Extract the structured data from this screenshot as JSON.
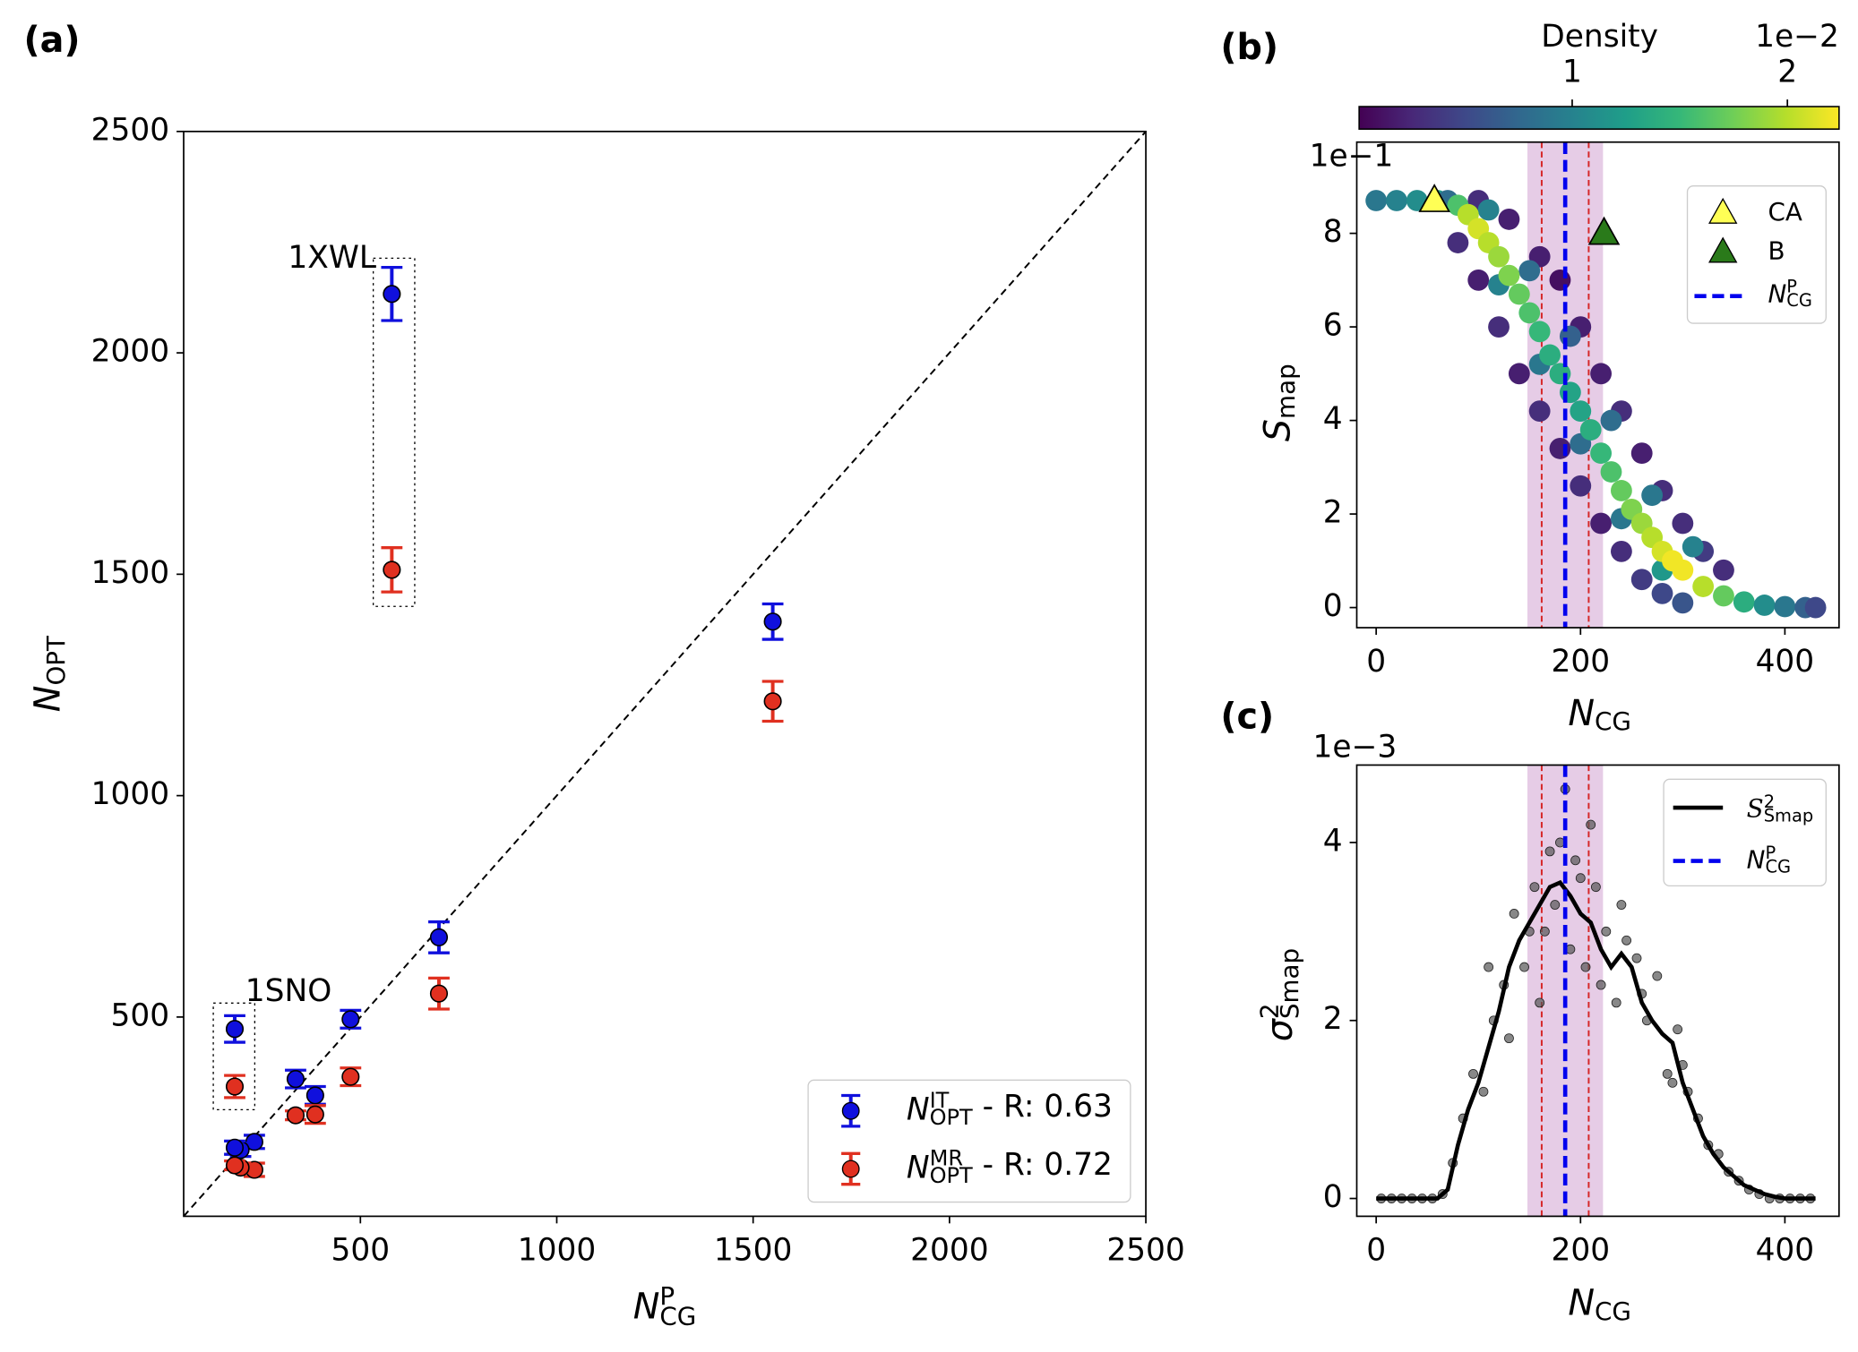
{
  "chart_data": [
    {
      "type": "scatter",
      "panel_label": "(a)",
      "x_label": {
        "base": "N",
        "sup": "P",
        "sub": "CG"
      },
      "y_label": {
        "base": "N",
        "sub": "OPT"
      },
      "xlim": [
        50,
        2500
      ],
      "ylim": [
        50,
        2500
      ],
      "xticks": [
        500,
        1000,
        1500,
        2000,
        2500
      ],
      "yticks": [
        500,
        1000,
        1500,
        2000,
        2500
      ],
      "diagonal": true,
      "legend": "lower right",
      "annotations": [
        "1XWL",
        "1SNO"
      ],
      "x": [
        580,
        1550,
        700,
        475,
        180,
        385,
        335,
        230,
        195,
        180
      ],
      "series": [
        {
          "name": {
            "base": "N",
            "sup": "IT",
            "sub": "OPT",
            "rest": " - R: 0.63"
          },
          "color": "#1010dd",
          "values": [
            2133,
            1393,
            680,
            495,
            473,
            323,
            360,
            218,
            200,
            205
          ],
          "errors": [
            60,
            40,
            35,
            20,
            30,
            20,
            20,
            15,
            15,
            15
          ]
        },
        {
          "name": {
            "base": "N",
            "sup": "MR",
            "sub": "OPT",
            "rest": " - R: 0.72"
          },
          "color": "#e03020",
          "values": [
            1510,
            1213,
            553,
            365,
            343,
            280,
            278,
            155,
            160,
            165
          ],
          "errors": [
            50,
            45,
            35,
            20,
            25,
            20,
            10,
            15,
            10,
            10
          ]
        }
      ]
    },
    {
      "type": "density_scatter",
      "panel_label": "(b)",
      "x_label": {
        "base": "N",
        "sub": "CG"
      },
      "y_label": {
        "base": "S",
        "sub": "map"
      },
      "y_offset": "1e−1",
      "xlim": [
        -19,
        453
      ],
      "ylim": [
        -0.43,
        9.95
      ],
      "xticks": [
        0,
        200,
        400
      ],
      "yticks": [
        0,
        2,
        4,
        6,
        8
      ],
      "colorbar": {
        "label": "Density",
        "ticks": [
          1,
          2
        ],
        "offset": "1e−2",
        "lim": [
          0.01,
          2.24
        ],
        "colormap": "viridis"
      },
      "x": [
        100,
        130,
        160,
        180,
        200,
        220,
        240,
        260,
        280,
        300,
        320,
        340,
        80,
        100,
        120,
        140,
        160,
        180,
        200,
        220,
        240,
        260,
        280,
        300,
        110,
        150,
        190,
        230,
        270,
        310,
        120,
        160,
        200,
        240,
        280,
        0,
        20,
        40,
        60,
        70,
        80,
        90,
        100,
        110,
        120,
        130,
        140,
        150,
        160,
        170,
        180,
        190,
        200,
        210,
        220,
        230,
        240,
        250,
        260,
        270,
        280,
        290,
        300,
        320,
        340,
        360,
        380,
        400,
        420,
        430
      ],
      "y": [
        8.7,
        8.3,
        7.5,
        7.0,
        6.0,
        5.0,
        4.2,
        3.3,
        2.5,
        1.8,
        1.2,
        0.8,
        7.8,
        7.0,
        6.0,
        5.0,
        4.2,
        3.4,
        2.6,
        1.8,
        1.2,
        0.6,
        0.3,
        0.1,
        8.5,
        7.2,
        5.8,
        4.0,
        2.4,
        1.3,
        6.9,
        5.2,
        3.5,
        1.9,
        0.8,
        8.7,
        8.7,
        8.7,
        8.7,
        8.7,
        8.6,
        8.4,
        8.1,
        7.8,
        7.5,
        7.1,
        6.7,
        6.3,
        5.9,
        5.4,
        5.0,
        4.6,
        4.2,
        3.8,
        3.3,
        2.9,
        2.5,
        2.1,
        1.8,
        1.5,
        1.2,
        1.0,
        0.8,
        0.45,
        0.25,
        0.12,
        0.05,
        0.02,
        0.0,
        0.0
      ],
      "density": [
        0.3,
        0.2,
        0.2,
        0.1,
        0.2,
        0.2,
        0.3,
        0.2,
        0.3,
        0.3,
        0.4,
        0.3,
        0.3,
        0.2,
        0.3,
        0.2,
        0.3,
        0.2,
        0.3,
        0.2,
        0.3,
        0.4,
        0.5,
        0.6,
        1.0,
        0.8,
        0.7,
        0.8,
        0.9,
        1.0,
        1.0,
        0.9,
        0.8,
        0.9,
        1.2,
        0.9,
        1.0,
        1.1,
        1.2,
        0.8,
        1.6,
        2.0,
        2.1,
        2.0,
        1.9,
        1.8,
        1.7,
        1.6,
        1.5,
        1.4,
        1.4,
        1.3,
        1.3,
        1.4,
        1.5,
        1.6,
        1.7,
        1.8,
        1.9,
        2.0,
        2.1,
        2.2,
        2.2,
        2.0,
        1.7,
        1.4,
        1.1,
        0.9,
        0.7,
        0.5
      ],
      "markers": [
        {
          "name": "CA",
          "x": 57,
          "y": 8.7,
          "color": "#ffff55"
        },
        {
          "name": "B",
          "x": 223,
          "y": 8.0,
          "color": "#2a7a1a"
        }
      ],
      "vline": {
        "name": {
          "base": "N",
          "sup": "P",
          "sub": "CG"
        },
        "value": 185,
        "color": "#0000ee"
      },
      "bounds": [
        162,
        208
      ],
      "band": [
        148,
        222
      ]
    },
    {
      "type": "line",
      "panel_label": "(c)",
      "x_label": {
        "base": "N",
        "sub": "CG"
      },
      "y_label": {
        "base": "σ",
        "sup": "2",
        "sub": "Smap"
      },
      "y_offset": "1e−3",
      "xlim": [
        -19,
        453
      ],
      "ylim": [
        -0.2,
        4.87
      ],
      "xticks": [
        0,
        200,
        400
      ],
      "yticks": [
        0,
        2,
        4
      ],
      "line_name": {
        "base": "S",
        "sup": "2",
        "sub": "Smap"
      },
      "x": [
        0,
        10,
        20,
        30,
        40,
        50,
        60,
        70,
        80,
        90,
        100,
        110,
        120,
        130,
        140,
        150,
        160,
        170,
        180,
        190,
        200,
        210,
        220,
        230,
        240,
        250,
        260,
        270,
        280,
        290,
        300,
        310,
        320,
        330,
        340,
        350,
        360,
        370,
        380,
        390,
        400,
        410,
        420,
        430
      ],
      "values": [
        0,
        0,
        0,
        0,
        0,
        0,
        0,
        0.1,
        0.6,
        1.0,
        1.3,
        1.7,
        2.1,
        2.6,
        2.9,
        3.1,
        3.3,
        3.5,
        3.55,
        3.4,
        3.2,
        3.1,
        2.8,
        2.6,
        2.75,
        2.6,
        2.2,
        2.0,
        1.85,
        1.75,
        1.3,
        1.0,
        0.7,
        0.5,
        0.35,
        0.25,
        0.15,
        0.1,
        0.05,
        0.02,
        0,
        0,
        0,
        0
      ],
      "scatter_x": [
        5,
        15,
        25,
        35,
        45,
        55,
        65,
        75,
        85,
        95,
        105,
        115,
        125,
        135,
        145,
        155,
        165,
        170,
        175,
        180,
        185,
        190,
        195,
        200,
        205,
        215,
        225,
        235,
        245,
        255,
        265,
        275,
        285,
        295,
        305,
        315,
        325,
        335,
        345,
        355,
        365,
        375,
        385,
        395,
        405,
        415,
        425,
        110,
        130,
        150,
        160,
        210,
        220,
        240,
        260,
        290,
        300
      ],
      "scatter_y": [
        0,
        0,
        0,
        0,
        0,
        0,
        0.05,
        0.4,
        0.9,
        1.4,
        1.2,
        2.0,
        2.4,
        3.2,
        2.6,
        3.5,
        3.0,
        3.9,
        3.3,
        4.0,
        4.6,
        2.8,
        3.8,
        3.6,
        2.6,
        3.5,
        3.0,
        2.2,
        2.9,
        2.7,
        2.0,
        2.5,
        1.4,
        1.9,
        1.2,
        0.9,
        0.6,
        0.5,
        0.3,
        0.2,
        0.1,
        0.05,
        0,
        0,
        0,
        0,
        0,
        2.6,
        1.8,
        3.0,
        2.2,
        4.2,
        2.4,
        3.3,
        2.3,
        1.3,
        1.5
      ],
      "vline": {
        "name": {
          "base": "N",
          "sup": "P",
          "sub": "CG"
        },
        "value": 185,
        "color": "#0000ee"
      },
      "bounds": [
        162,
        208
      ],
      "band": [
        148,
        222
      ]
    }
  ]
}
